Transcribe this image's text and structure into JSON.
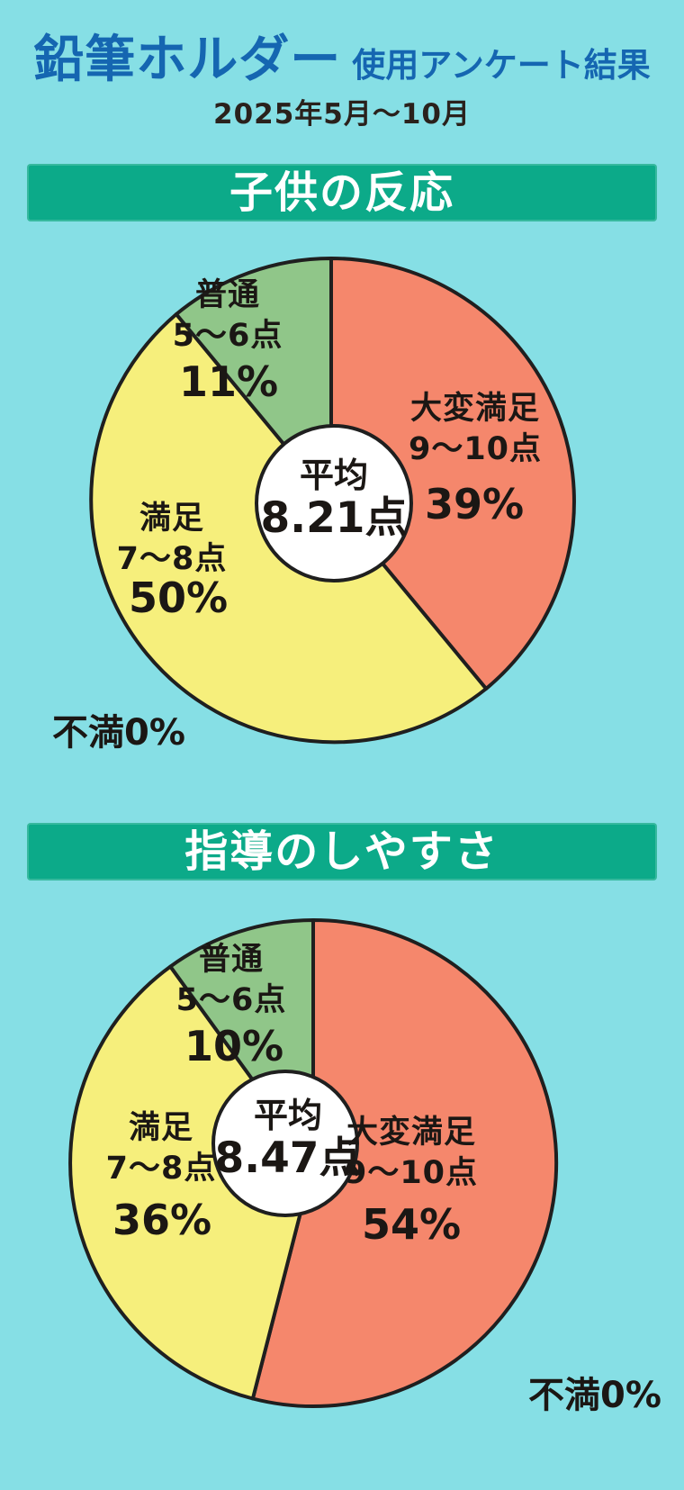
{
  "page": {
    "background_color": "#86dfe5",
    "banner_color": "#0caa89",
    "title_color": "#1566b1",
    "ink_color": "#1b1714",
    "outline_color": "#1f1f1f",
    "center_fill": "#ffffff"
  },
  "header": {
    "title_main": "鉛筆ホルダー",
    "title_sub": "使用アンケート結果",
    "subtitle": "2025年5月〜10月"
  },
  "charts": [
    {
      "banner": "子供の反応",
      "average_label": "平均",
      "average_value": "8.21点",
      "zero_label": "不満0%",
      "slices": [
        {
          "name": "大変満足",
          "range": "9〜10点",
          "percent_label": "39%"
        },
        {
          "name": "満足",
          "range": "7〜8点",
          "percent_label": "50%"
        },
        {
          "name": "普通",
          "range": "5〜6点",
          "percent_label": "11%"
        }
      ]
    },
    {
      "banner": "指導のしやすさ",
      "average_label": "平均",
      "average_value": "8.47点",
      "zero_label": "不満0%",
      "slices": [
        {
          "name": "大変満足",
          "range": "9〜10点",
          "percent_label": "54%"
        },
        {
          "name": "満足",
          "range": "7〜8点",
          "percent_label": "36%"
        },
        {
          "name": "普通",
          "range": "5〜6点",
          "percent_label": "10%"
        }
      ]
    }
  ],
  "chart_data": [
    {
      "type": "pie",
      "title": "子供の反応",
      "labels": [
        "大変満足 9〜10点",
        "満足 7〜8点",
        "普通 5〜6点",
        "不満"
      ],
      "values": [
        39,
        50,
        11,
        0
      ],
      "colors": [
        "#f5876c",
        "#f6ef7c",
        "#90c689",
        null
      ],
      "center_label": "平均 8.21点",
      "start_angle_deg": 0,
      "direction": "clockwise",
      "legend_position": "on-slice"
    },
    {
      "type": "pie",
      "title": "指導のしやすさ",
      "labels": [
        "大変満足 9〜10点",
        "満足 7〜8点",
        "普通 5〜6点",
        "不満"
      ],
      "values": [
        54,
        36,
        10,
        0
      ],
      "colors": [
        "#f5876c",
        "#f6ef7c",
        "#90c689",
        null
      ],
      "center_label": "平均 8.47点",
      "start_angle_deg": 0,
      "direction": "clockwise",
      "legend_position": "on-slice"
    }
  ]
}
